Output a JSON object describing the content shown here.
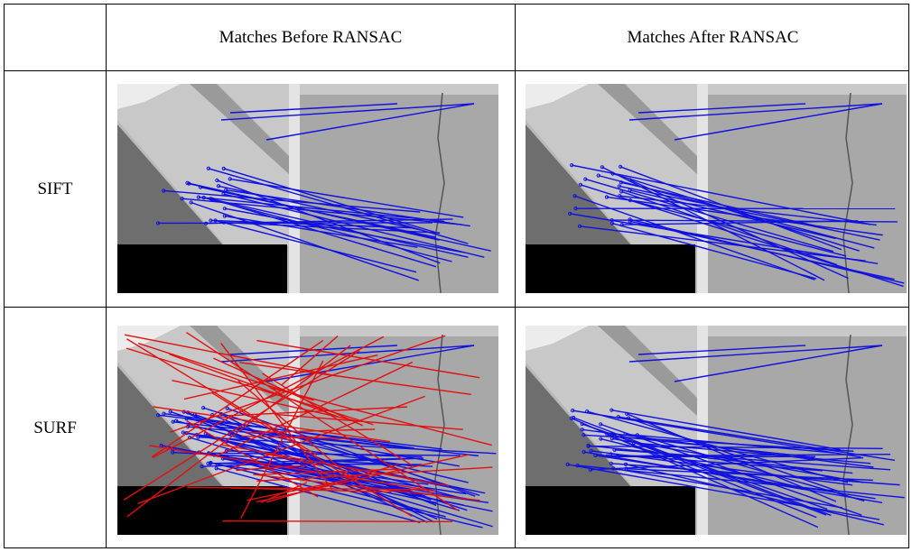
{
  "table": {
    "columns": [
      "Matches Before RANSAC",
      "Matches After RANSAC"
    ],
    "rows": [
      {
        "label": "SIFT"
      },
      {
        "label": "SURF"
      }
    ]
  }
}
